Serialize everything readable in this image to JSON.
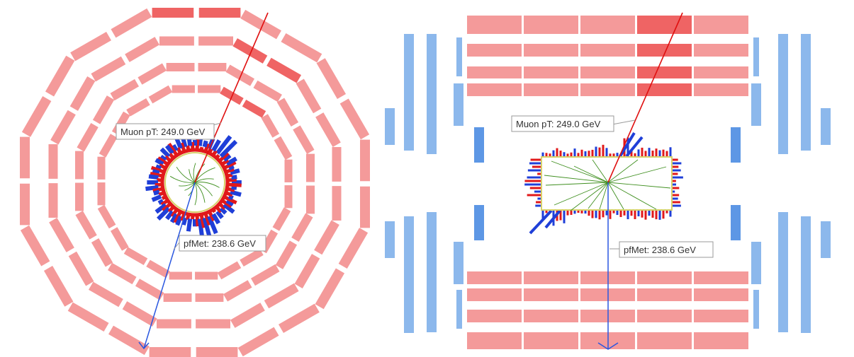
{
  "colors": {
    "muon_chamber": "#f49a9a",
    "muon_chamber_hit": "#ef6464",
    "muon_endcap": "#8cb8ec",
    "muon_endcap_dark": "#5d97e5",
    "ecal_energy": "#e1181a",
    "hcal_energy": "#1f3fd8",
    "tracker_tracks": "#3f8f1f",
    "tracker_outline": "#d6d16a",
    "muon_track": "#e01010",
    "met_arrow": "#2a57e0"
  },
  "transverse_view": {
    "muon_label": "Muon pT: 249.0 GeV",
    "met_label": "pfMet: 238.6 GeV"
  },
  "longitudinal_view": {
    "muon_label": "Muon pT: 249.0 GeV",
    "met_label": "pfMet: 238.6 GeV"
  }
}
